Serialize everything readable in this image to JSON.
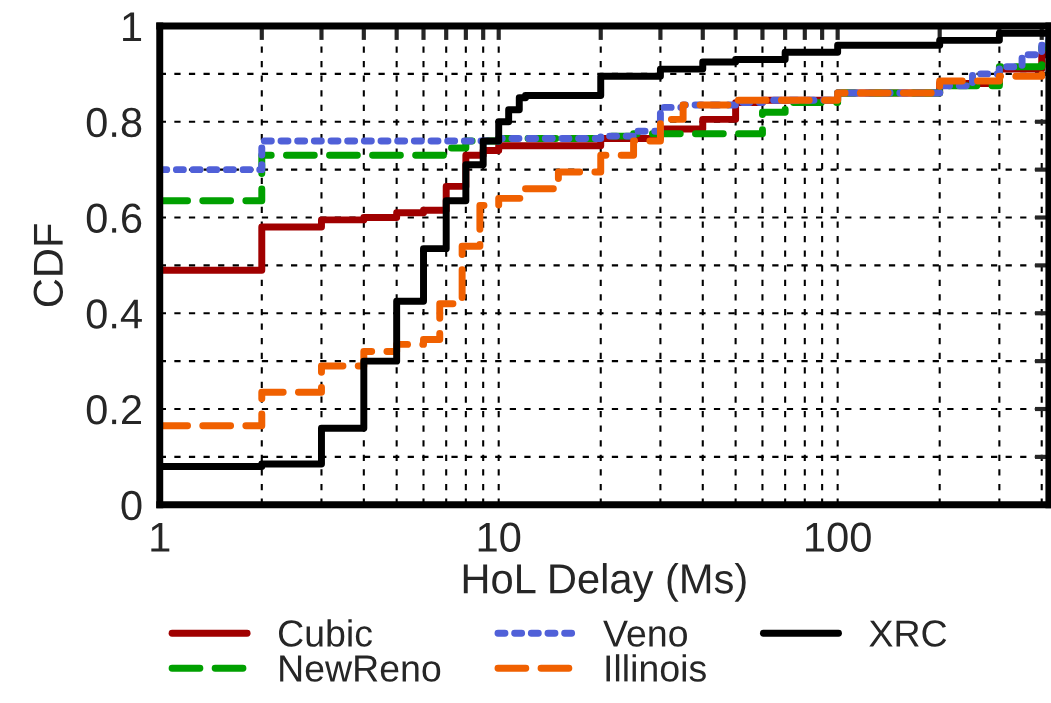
{
  "chart_data": {
    "type": "step",
    "xlabel": "HoL Delay (Ms)",
    "ylabel": "CDF",
    "log": "x",
    "xlim": [
      1,
      420
    ],
    "ylim": [
      0,
      1
    ],
    "xticks": [
      1,
      {
        "value": 2,
        "label": null
      },
      {
        "value": 3,
        "label": null
      },
      {
        "value": 4,
        "label": null
      },
      {
        "value": 5,
        "label": null
      },
      {
        "value": 6,
        "label": null
      },
      {
        "value": 7,
        "label": null
      },
      {
        "value": 8,
        "label": null
      },
      {
        "value": 9,
        "label": null
      },
      10,
      {
        "value": 20,
        "label": null
      },
      {
        "value": 30,
        "label": null
      },
      {
        "value": 40,
        "label": null
      },
      {
        "value": 50,
        "label": null
      },
      {
        "value": 60,
        "label": null
      },
      {
        "value": 70,
        "label": null
      },
      {
        "value": 80,
        "label": null
      },
      {
        "value": 90,
        "label": null
      },
      100,
      {
        "value": 200,
        "label": null
      },
      {
        "value": 300,
        "label": null
      },
      {
        "value": 400,
        "label": null
      }
    ],
    "yticks": [
      0,
      {
        "value": 0.1,
        "label": null
      },
      0.2,
      {
        "value": 0.3,
        "label": null
      },
      0.4,
      {
        "value": 0.5,
        "label": null
      },
      0.6,
      {
        "value": 0.7,
        "label": null
      },
      0.8,
      {
        "value": 0.9,
        "label": null
      },
      1
    ],
    "grid": true,
    "legend": "bottom",
    "series": [
      {
        "name": "Cubic",
        "color": "#a00000",
        "line_style": "solid",
        "x": [
          1,
          2,
          3,
          4,
          5,
          6,
          7,
          8,
          9,
          10,
          20,
          30,
          40,
          50,
          60,
          100,
          200,
          300,
          400,
          420
        ],
        "values": [
          0.49,
          0.58,
          0.595,
          0.6,
          0.61,
          0.615,
          0.665,
          0.73,
          0.74,
          0.75,
          0.765,
          0.785,
          0.805,
          0.84,
          0.845,
          0.86,
          0.88,
          0.91,
          0.94,
          0.96
        ]
      },
      {
        "name": "NewReno",
        "color": "#00a000",
        "line_style": "dashed",
        "x": [
          1,
          2,
          7,
          8,
          10,
          20,
          25,
          60,
          70,
          100,
          200,
          300,
          400,
          420
        ],
        "values": [
          0.635,
          0.73,
          0.745,
          0.76,
          0.765,
          0.77,
          0.775,
          0.82,
          0.84,
          0.86,
          0.875,
          0.915,
          0.955,
          0.97
        ]
      },
      {
        "name": "Veno",
        "color": "#5060d8",
        "line_style": "dotted",
        "x": [
          1,
          2,
          10,
          20,
          25,
          30,
          35,
          50,
          60,
          100,
          200,
          250,
          300,
          350,
          400,
          420
        ],
        "values": [
          0.7,
          0.76,
          0.765,
          0.77,
          0.78,
          0.83,
          0.835,
          0.84,
          0.845,
          0.86,
          0.875,
          0.9,
          0.915,
          0.94,
          0.96,
          0.975
        ]
      },
      {
        "name": "Illinois",
        "color": "#f06000",
        "line_style": "dashed",
        "x": [
          1,
          2,
          3,
          4,
          5,
          6,
          6.7,
          7.8,
          8.8,
          10,
          12,
          15,
          20,
          25,
          30,
          35,
          50,
          100,
          200,
          300,
          400,
          420
        ],
        "values": [
          0.165,
          0.235,
          0.29,
          0.32,
          0.335,
          0.345,
          0.42,
          0.54,
          0.625,
          0.64,
          0.66,
          0.695,
          0.73,
          0.76,
          0.805,
          0.835,
          0.845,
          0.86,
          0.885,
          0.895,
          0.905,
          0.925
        ]
      },
      {
        "name": "XRC",
        "color": "#000000",
        "line_style": "solid",
        "x": [
          1,
          2,
          3,
          4,
          5,
          6,
          7,
          8,
          9,
          10,
          10.7,
          11.5,
          12,
          20,
          30,
          40,
          50,
          70,
          100,
          200,
          300,
          420
        ],
        "values": [
          0.08,
          0.085,
          0.16,
          0.3,
          0.425,
          0.535,
          0.635,
          0.71,
          0.76,
          0.8,
          0.825,
          0.85,
          0.855,
          0.895,
          0.91,
          0.925,
          0.93,
          0.945,
          0.96,
          0.97,
          0.985,
          0.99
        ]
      }
    ]
  }
}
